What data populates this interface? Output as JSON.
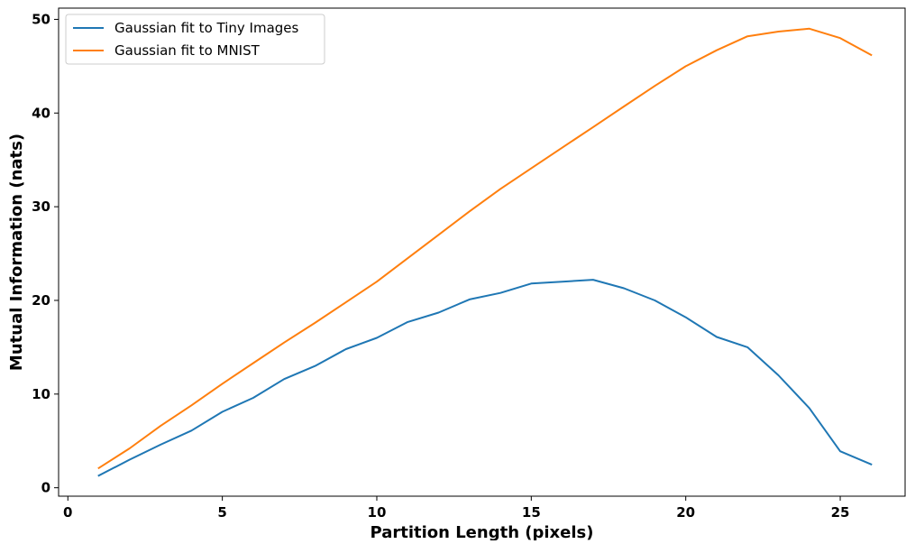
{
  "chart_data": {
    "type": "line",
    "title": "",
    "xlabel": "Partition Length (pixels)",
    "ylabel": "Mutual Information (nats)",
    "xlim": [
      -0.3,
      27.1
    ],
    "ylim": [
      -0.9,
      51.2
    ],
    "xticks": [
      0,
      5,
      10,
      15,
      20,
      25
    ],
    "yticks": [
      0,
      10,
      20,
      30,
      40,
      50
    ],
    "grid": false,
    "legend_position": "upper-left",
    "x": [
      1,
      2,
      3,
      4,
      5,
      6,
      7,
      8,
      9,
      10,
      11,
      12,
      13,
      14,
      15,
      16,
      17,
      18,
      19,
      20,
      21,
      22,
      23,
      24,
      25,
      26
    ],
    "series": [
      {
        "name": "Gaussian fit to Tiny Images",
        "color": "#1f77b4",
        "values": [
          1.3,
          3.0,
          4.6,
          6.1,
          8.1,
          9.6,
          11.6,
          13.0,
          14.8,
          16.0,
          17.7,
          18.7,
          20.1,
          20.8,
          21.8,
          22.0,
          22.2,
          21.3,
          20.0,
          18.2,
          16.1,
          15.0,
          12.0,
          8.5,
          3.9,
          2.5
        ]
      },
      {
        "name": "Gaussian fit to MNIST",
        "color": "#ff7f0e",
        "values": [
          2.1,
          4.2,
          6.6,
          8.8,
          11.1,
          13.3,
          15.5,
          17.6,
          19.8,
          22.0,
          24.5,
          27.0,
          29.5,
          31.9,
          34.1,
          36.3,
          38.5,
          40.7,
          42.9,
          45.0,
          46.7,
          48.2,
          48.7,
          49.0,
          48.0,
          46.2
        ]
      }
    ]
  }
}
